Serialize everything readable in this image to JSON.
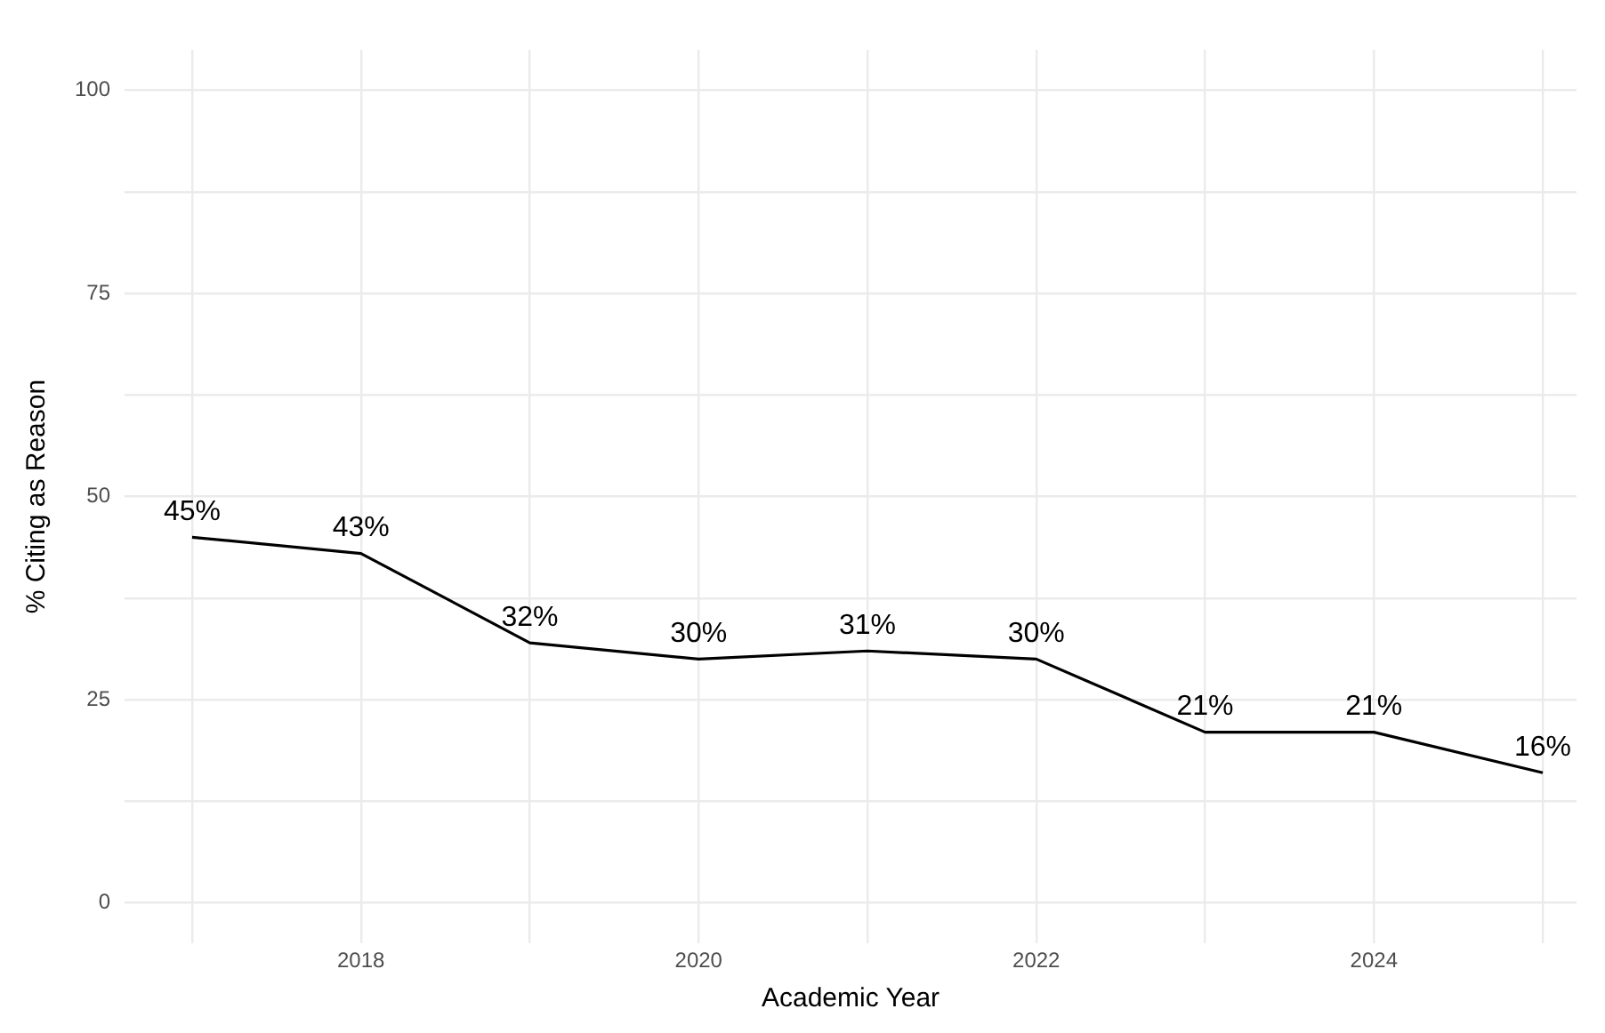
{
  "chart_data": {
    "type": "line",
    "xlabel": "Academic Year",
    "ylabel": "% Citing as Reason",
    "x": [
      2017,
      2018,
      2019,
      2020,
      2021,
      2022,
      2023,
      2024,
      2025
    ],
    "series": [
      {
        "color": "#000000",
        "values": [
          45,
          43,
          32,
          30,
          31,
          30,
          21,
          21,
          16
        ]
      }
    ],
    "value_labels": [
      "45%",
      "43%",
      "32%",
      "30%",
      "31%",
      "30%",
      "21%",
      "21%",
      "16%"
    ],
    "xlim": [
      2016.6,
      2025.2
    ],
    "xticks": [
      {
        "value": 2017,
        "label": null
      },
      2018,
      {
        "value": 2019,
        "label": null
      },
      2020,
      {
        "value": 2021,
        "label": null
      },
      2022,
      {
        "value": 2023,
        "label": null
      },
      2024,
      {
        "value": 2025,
        "label": null
      }
    ],
    "ylim": [
      -5,
      105
    ],
    "yticks": [
      0,
      {
        "value": 12.5,
        "label": null
      },
      25,
      {
        "value": 37.5,
        "label": null
      },
      50,
      {
        "value": 62.5,
        "label": null
      },
      75,
      {
        "value": 87.5,
        "label": null
      },
      100
    ],
    "grid": true,
    "legend": false,
    "marker": "none",
    "line_style": "solid"
  }
}
